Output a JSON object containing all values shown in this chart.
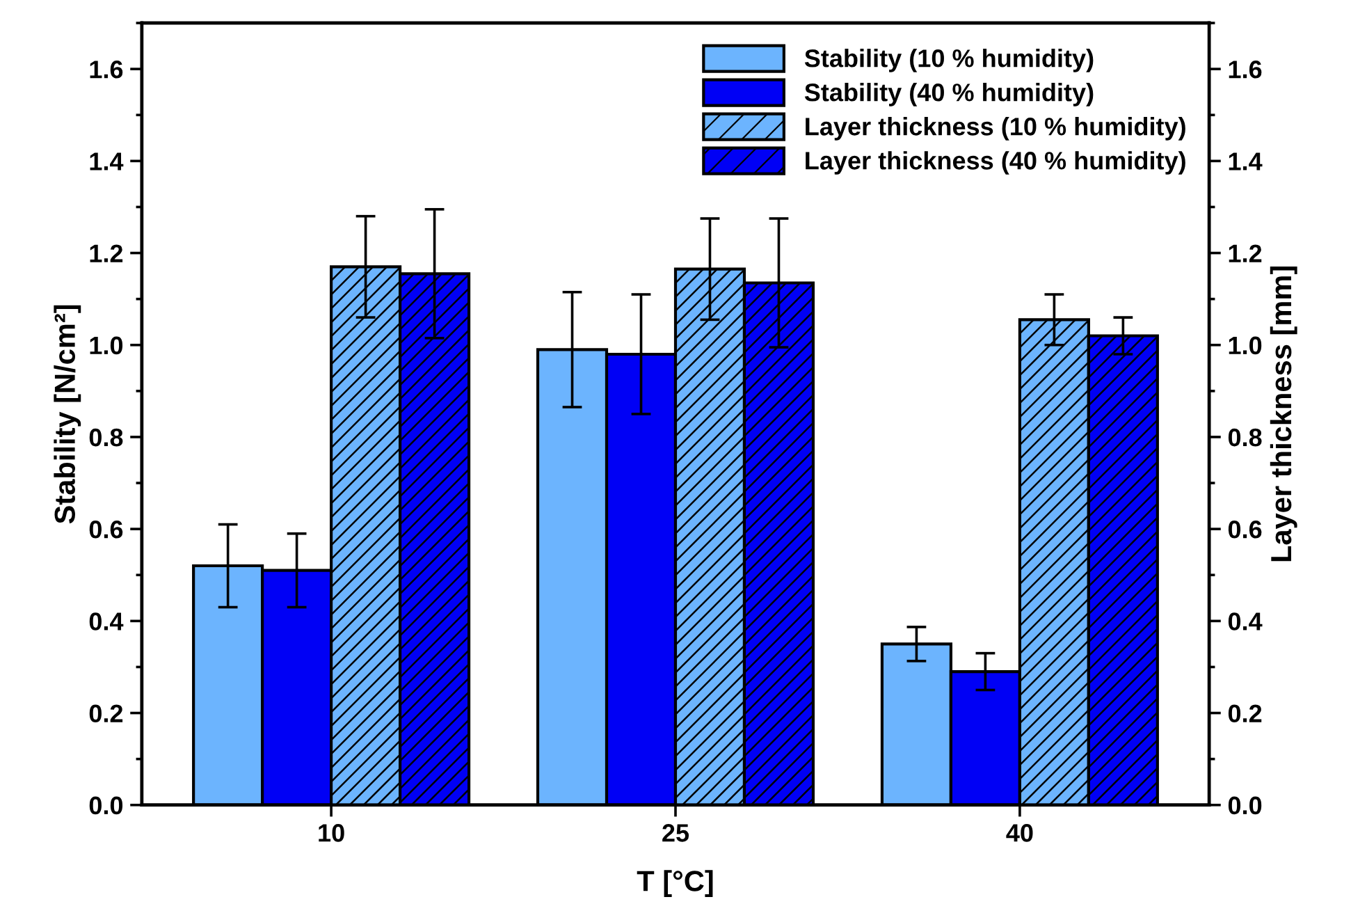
{
  "chart_data": {
    "type": "bar",
    "xlabel": "T [°C]",
    "ylabel": "Stability [N/cm²]",
    "y2label": "Layer thickness [mm]",
    "categories": [
      "10",
      "25",
      "40"
    ],
    "series": [
      {
        "name": "Stability (10 % humidity)",
        "color": "#6cb4fe",
        "values": [
          0.52,
          0.99,
          0.35
        ],
        "errors": [
          0.09,
          0.125,
          0.037
        ]
      },
      {
        "name": "Stability (40 % humidity)",
        "color": "#0000f5",
        "values": [
          0.51,
          0.98,
          0.29
        ],
        "errors": [
          0.08,
          0.13,
          0.04
        ]
      },
      {
        "name": "Layer thickness (10 % humidity)",
        "color": "#6cb4fe",
        "axis": "y2",
        "values": [
          1.17,
          1.165,
          1.055
        ],
        "errors": [
          0.11,
          0.11,
          0.055
        ]
      },
      {
        "name": "Layer thickness (40 % humidity)",
        "color": "#0000f5",
        "axis": "y2",
        "values": [
          1.155,
          1.135,
          1.02
        ],
        "errors": [
          0.14,
          0.14,
          0.04
        ]
      }
    ],
    "ylim": [
      0,
      1.7
    ],
    "yticks": [
      {
        "value": 0,
        "label": "0.0"
      },
      0.2,
      0.4,
      0.6,
      0.8,
      {
        "value": 1,
        "label": "1.0"
      },
      1.2,
      1.4,
      1.6
    ],
    "y2lim": [
      0,
      1.7
    ],
    "y2ticks": [
      {
        "value": 0,
        "label": "0.0"
      },
      0.2,
      0.4,
      0.6,
      0.8,
      {
        "value": 1,
        "label": "1.0"
      },
      1.2,
      1.4,
      1.6
    ],
    "grid": false,
    "legend": "top right"
  }
}
